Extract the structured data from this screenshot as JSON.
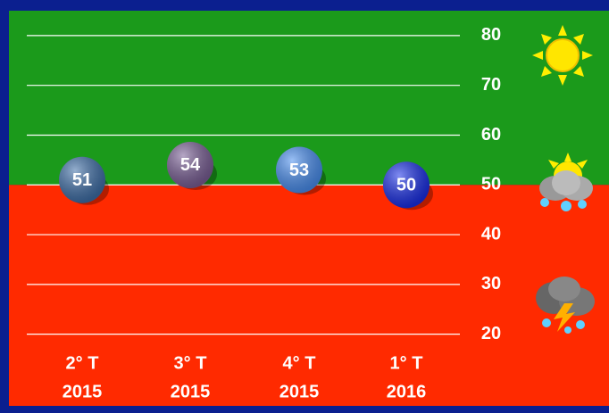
{
  "chart_data": {
    "type": "bubble",
    "categories": [
      [
        "2° T",
        "2015"
      ],
      [
        "3° T",
        "2015"
      ],
      [
        "4° T",
        "2015"
      ],
      [
        "1° T",
        "2016"
      ]
    ],
    "values": [
      51,
      54,
      53,
      50
    ],
    "colors": [
      "#3f6fa8",
      "#7a5f96",
      "#4a8ff0",
      "#1a2fe8"
    ],
    "ylim": [
      5.6,
      85
    ],
    "yticks": [
      20,
      30,
      40,
      50,
      60,
      70,
      80
    ],
    "grid": true,
    "bands": [
      {
        "from": 50,
        "to": 85,
        "color": "#1b9a1b"
      },
      {
        "from": 5.6,
        "to": 50,
        "color": "#ff2a00"
      }
    ]
  }
}
